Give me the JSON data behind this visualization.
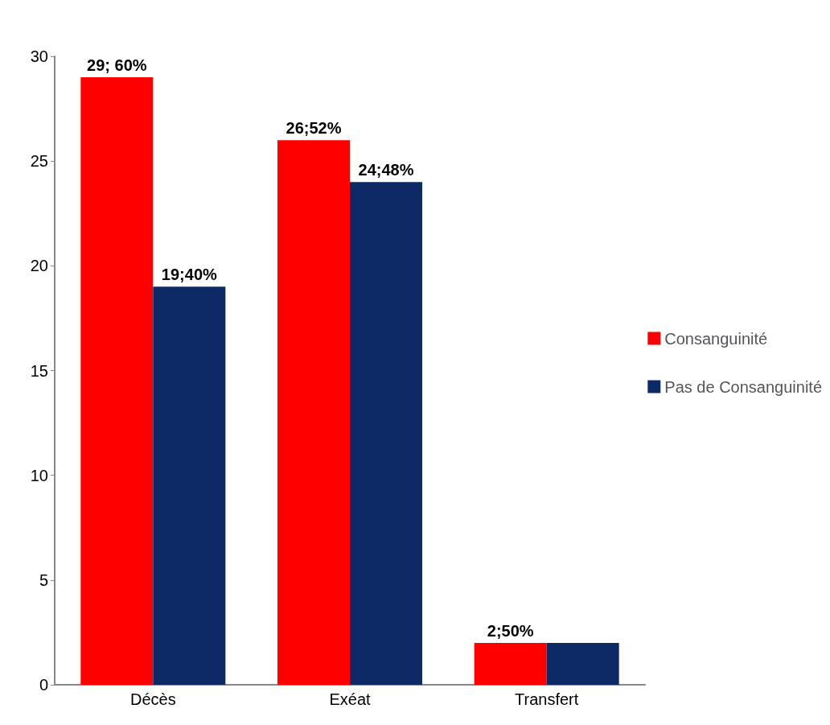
{
  "chart_data": {
    "type": "bar",
    "categories": [
      "Décès",
      "Exéat",
      "Transfert"
    ],
    "series": [
      {
        "name": "Consanguinité",
        "color": "#ff0000",
        "values": [
          29,
          26,
          2
        ],
        "value_labels": [
          "29; 60%",
          "26;52%",
          "2;50%"
        ]
      },
      {
        "name": "Pas de Consanguinité",
        "color": "#0d2a66",
        "values": [
          19,
          24,
          2
        ],
        "value_labels": [
          "19;40%",
          "24;48%",
          null
        ]
      }
    ],
    "ylim": [
      0,
      30
    ],
    "yticks": [
      0,
      5,
      10,
      15,
      20,
      25,
      30
    ],
    "grid": false,
    "legend": "right"
  }
}
